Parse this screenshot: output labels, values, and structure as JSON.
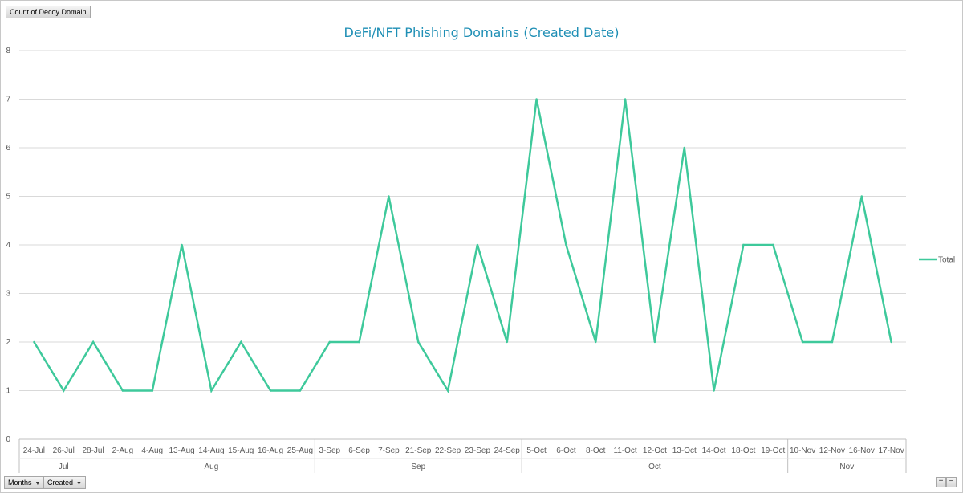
{
  "buttons": {
    "value_field": "Count of Decoy Domain",
    "months_field": "Months",
    "created_field": "Created",
    "zoom_in": "+",
    "zoom_out": "−"
  },
  "colors": {
    "series": "#3ec99b",
    "title": "#1f8fb5",
    "grid": "#d9d9d9"
  },
  "chart_data": {
    "type": "line",
    "title": "DeFi/NFT Phishing Domains (Created Date)",
    "xlabel": "",
    "ylabel": "",
    "ylim": [
      0,
      8
    ],
    "yticks": [
      0,
      1,
      2,
      3,
      4,
      5,
      6,
      7,
      8
    ],
    "grid": true,
    "legend": "right",
    "categories": [
      "24-Jul",
      "26-Jul",
      "28-Jul",
      "2-Aug",
      "4-Aug",
      "13-Aug",
      "14-Aug",
      "15-Aug",
      "16-Aug",
      "25-Aug",
      "3-Sep",
      "6-Sep",
      "7-Sep",
      "21-Sep",
      "22-Sep",
      "23-Sep",
      "24-Sep",
      "5-Oct",
      "6-Oct",
      "8-Oct",
      "11-Oct",
      "12-Oct",
      "13-Oct",
      "14-Oct",
      "18-Oct",
      "19-Oct",
      "10-Nov",
      "12-Nov",
      "16-Nov",
      "17-Nov"
    ],
    "groups": [
      {
        "label": "Jul",
        "count": 3
      },
      {
        "label": "Aug",
        "count": 7
      },
      {
        "label": "Sep",
        "count": 7
      },
      {
        "label": "Oct",
        "count": 9
      },
      {
        "label": "Nov",
        "count": 4
      }
    ],
    "series": [
      {
        "name": "Total",
        "values": [
          2,
          1,
          2,
          1,
          1,
          4,
          1,
          2,
          1,
          1,
          2,
          2,
          5,
          2,
          1,
          4,
          2,
          7,
          4,
          2,
          7,
          2,
          6,
          1,
          4,
          4,
          2,
          2,
          5,
          2
        ]
      }
    ]
  }
}
